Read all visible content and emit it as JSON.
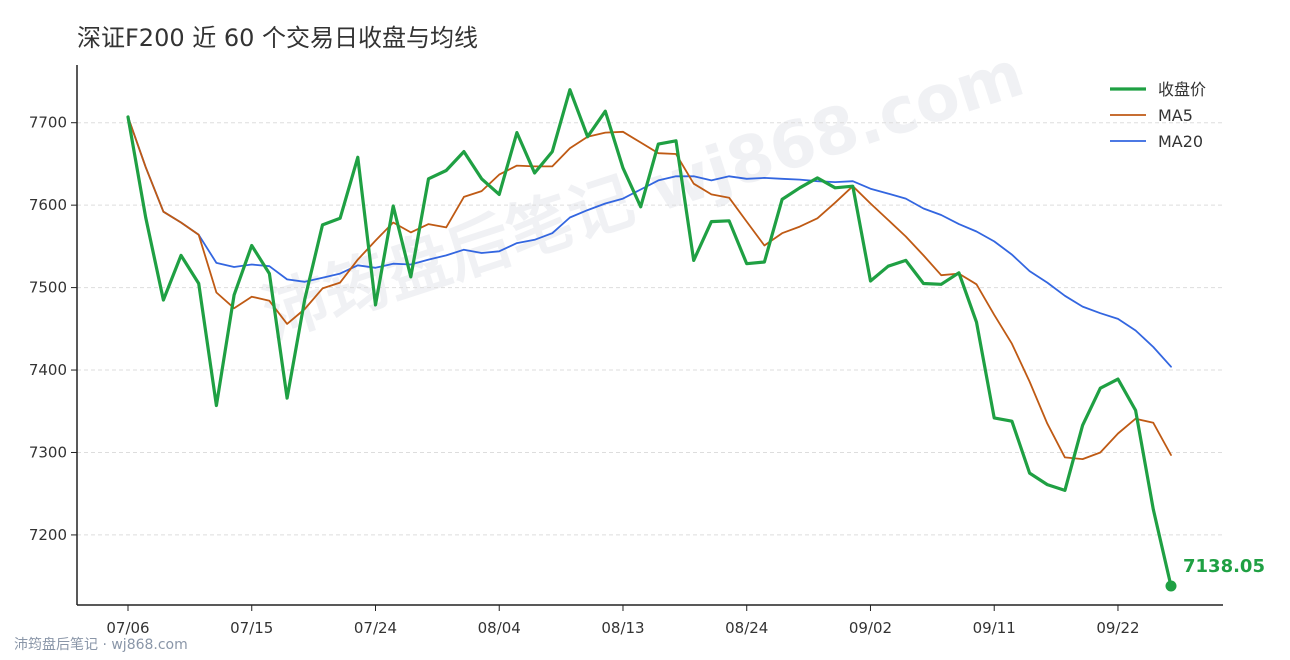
{
  "title": "深证F200 近 60 个交易日收盘与均线",
  "watermark_center": "沛筠盘后笔记 wj868.com",
  "watermark_bottom": "沛筠盘后笔记 · wj868.com",
  "last_value_label": "7138.05",
  "colors": {
    "close": "#1fa043",
    "ma5": "#bf5a14",
    "ma20": "#3366e0",
    "grid": "#dddddd",
    "axis": "#222222",
    "text": "#333333"
  },
  "chart_data": {
    "type": "line",
    "title": "深证F200 近 60 个交易日收盘与均线",
    "xlabel": "",
    "ylabel": "",
    "x": [
      "07/06",
      "07/07",
      "07/08",
      "07/09",
      "07/10",
      "07/13",
      "07/14",
      "07/15",
      "07/16",
      "07/17",
      "07/20",
      "07/21",
      "07/22",
      "07/23",
      "07/24",
      "07/27",
      "07/28",
      "07/29",
      "07/30",
      "07/31",
      "08/03",
      "08/04",
      "08/05",
      "08/06",
      "08/07",
      "08/10",
      "08/11",
      "08/12",
      "08/13",
      "08/14",
      "08/17",
      "08/18",
      "08/19",
      "08/20",
      "08/21",
      "08/24",
      "08/25",
      "08/26",
      "08/27",
      "08/28",
      "08/31",
      "09/01",
      "09/02",
      "09/03",
      "09/04",
      "09/07",
      "09/08",
      "09/09",
      "09/10",
      "09/11",
      "09/14",
      "09/15",
      "09/16",
      "09/17",
      "09/18",
      "09/21",
      "09/22",
      "09/23",
      "09/24",
      "09/25"
    ],
    "x_ticks": [
      "07/06",
      "07/15",
      "07/24",
      "08/04",
      "08/13",
      "08/24",
      "09/02",
      "09/11",
      "09/22"
    ],
    "y_ticks": [
      7200,
      7300,
      7400,
      7500,
      7600,
      7700
    ],
    "ylim": [
      7115,
      7770
    ],
    "grid": true,
    "legend_position": "top-right",
    "series": [
      {
        "name": "收盘价",
        "values": [
          7707,
          7585,
          7485,
          7539,
          7505,
          7357,
          7491,
          7551,
          7517,
          7366,
          7486,
          7576,
          7584,
          7658,
          7479,
          7599,
          7513,
          7632,
          7642,
          7665,
          7632,
          7613,
          7688,
          7639,
          7665,
          7740,
          7683,
          7714,
          7645,
          7598,
          7674,
          7678,
          7533,
          7580,
          7581,
          7529,
          7531,
          7607,
          7621,
          7633,
          7621,
          7623,
          7508,
          7526,
          7533,
          7505,
          7504,
          7518,
          7458,
          7342,
          7338,
          7275,
          7261,
          7254,
          7333,
          7378,
          7389,
          7351,
          7231,
          7138.05
        ]
      },
      {
        "name": "MA5",
        "values": [
          7707,
          7646,
          7592,
          7579,
          7564,
          7494,
          7475,
          7489,
          7484,
          7456,
          7474,
          7499,
          7506,
          7534,
          7557,
          7579,
          7567,
          7577,
          7573,
          7610,
          7617,
          7637,
          7648,
          7647,
          7647,
          7669,
          7683,
          7688,
          7689,
          7676,
          7663,
          7662,
          7626,
          7613,
          7609,
          7580,
          7551,
          7566,
          7574,
          7584,
          7603,
          7623,
          7602,
          7582,
          7562,
          7539,
          7515,
          7517,
          7504,
          7467,
          7432,
          7386,
          7335,
          7294,
          7292,
          7300,
          7323,
          7341,
          7336,
          7297
        ]
      },
      {
        "name": "MA20",
        "values": [
          7707,
          7646,
          7592,
          7579,
          7564,
          7530,
          7525,
          7528,
          7526,
          7510,
          7507,
          7512,
          7517,
          7527,
          7524,
          7529,
          7528,
          7534,
          7539,
          7546,
          7542,
          7544,
          7554,
          7558,
          7566,
          7585,
          7594,
          7602,
          7608,
          7619,
          7630,
          7635,
          7635,
          7630,
          7635,
          7632,
          7633,
          7632,
          7631,
          7629,
          7628,
          7629,
          7620,
          7614,
          7608,
          7596,
          7588,
          7577,
          7568,
          7556,
          7540,
          7520,
          7506,
          7490,
          7477,
          7469,
          7462,
          7448,
          7428,
          7404
        ]
      }
    ]
  }
}
